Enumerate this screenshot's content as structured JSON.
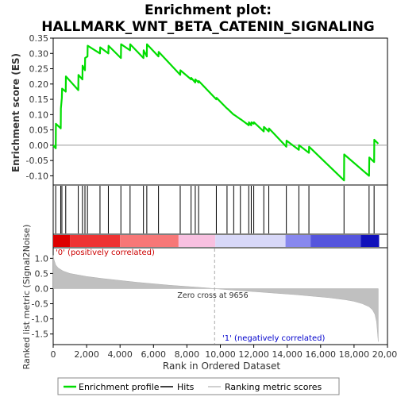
{
  "chart_data": {
    "type": "line",
    "title": "Enrichment plot:\nHALLMARK_WNT_BETA_CATENIN_SIGNALING",
    "es_panel": {
      "ylabel": "Enrichment score (ES)",
      "ylim": [
        -0.13,
        0.35
      ],
      "yticks": [
        -0.1,
        -0.05,
        0.0,
        0.05,
        0.1,
        0.15,
        0.2,
        0.25,
        0.3,
        0.35
      ],
      "ytick_labels": [
        "-0.10",
        "-0.05",
        "0.00",
        "0.05",
        "0.10",
        "0.15",
        "0.20",
        "0.25",
        "0.30",
        "0.35"
      ],
      "series": [
        {
          "name": "Enrichment profile",
          "color": "#00dd00",
          "x": [
            0,
            150,
            160,
            450,
            460,
            520,
            530,
            750,
            760,
            1500,
            1510,
            1750,
            1760,
            1900,
            1910,
            2050,
            2060,
            2800,
            2810,
            3300,
            3310,
            4050,
            4060,
            4600,
            4610,
            5400,
            5410,
            5600,
            5610,
            6300,
            6310,
            7600,
            7610,
            8250,
            8260,
            8500,
            8510,
            8700,
            8710,
            9760,
            9770,
            10400,
            10410,
            10800,
            10810,
            11200,
            11210,
            11700,
            11710,
            11850,
            11860,
            12000,
            12010,
            12600,
            12610,
            12900,
            12910,
            13950,
            13960,
            14700,
            14710,
            15300,
            15310,
            17400,
            17410,
            18900,
            18910,
            19200,
            19210,
            19450
          ],
          "y": [
            0.0,
            -0.01,
            0.07,
            0.055,
            0.12,
            0.155,
            0.185,
            0.175,
            0.225,
            0.18,
            0.23,
            0.215,
            0.26,
            0.245,
            0.285,
            0.29,
            0.325,
            0.3,
            0.32,
            0.3,
            0.325,
            0.285,
            0.33,
            0.31,
            0.33,
            0.285,
            0.31,
            0.29,
            0.33,
            0.29,
            0.305,
            0.23,
            0.245,
            0.215,
            0.22,
            0.205,
            0.215,
            0.205,
            0.21,
            0.15,
            0.155,
            0.12,
            0.12,
            0.1,
            0.1,
            0.085,
            0.085,
            0.065,
            0.075,
            0.065,
            0.075,
            0.07,
            0.075,
            0.045,
            0.06,
            0.045,
            0.055,
            -0.005,
            0.015,
            -0.015,
            0.0,
            -0.025,
            -0.005,
            -0.115,
            -0.03,
            -0.1,
            -0.04,
            -0.055,
            0.018,
            0.005
          ]
        }
      ]
    },
    "hits": {
      "legend_label": "Hits",
      "positions": [
        150,
        450,
        520,
        750,
        1500,
        1750,
        1900,
        2050,
        2800,
        3300,
        4050,
        4600,
        5400,
        5600,
        6300,
        7600,
        8250,
        8500,
        8700,
        9760,
        10400,
        10800,
        11200,
        11700,
        11850,
        12000,
        12600,
        12900,
        13950,
        14700,
        15300,
        17400,
        18900,
        19200
      ]
    },
    "ranked_metric_panel": {
      "ylabel": "Ranked list metric (Signal2Noise)",
      "ylim": [
        -1.85,
        1.35
      ],
      "yticks": [
        -1.5,
        -1.0,
        -0.5,
        0.0,
        0.5,
        1.0
      ],
      "ytick_labels": [
        "-1.5",
        "-1.0",
        "-0.5",
        "0.0",
        "0.5",
        "1.0"
      ],
      "legend_label": "Ranking metric scores",
      "curve": {
        "x": [
          0,
          50,
          150,
          300,
          600,
          1000,
          2000,
          3000,
          4000,
          5000,
          6000,
          7000,
          8000,
          9000,
          9656,
          10500,
          11500,
          12500,
          13500,
          14500,
          15500,
          16500,
          17500,
          18000,
          18500,
          18900,
          19100,
          19250,
          19350,
          19450
        ],
        "y": [
          1.1,
          0.95,
          0.78,
          0.68,
          0.58,
          0.5,
          0.4,
          0.33,
          0.27,
          0.21,
          0.16,
          0.11,
          0.07,
          0.03,
          0.0,
          -0.04,
          -0.08,
          -0.12,
          -0.16,
          -0.2,
          -0.25,
          -0.3,
          -0.37,
          -0.42,
          -0.5,
          -0.6,
          -0.7,
          -0.85,
          -1.1,
          -1.75
        ]
      },
      "zero_cross_label": "Zero cross at 9656",
      "zero_cross_x": 9656,
      "pos_label": "'0' (positively correlated)",
      "neg_label": "'1' (negatively correlated)"
    },
    "color_bar": {
      "segments": [
        {
          "from": 0,
          "to": 1000,
          "color": "#dd0000"
        },
        {
          "from": 1000,
          "to": 4000,
          "color": "#ee3333"
        },
        {
          "from": 4000,
          "to": 7500,
          "color": "#f77777"
        },
        {
          "from": 7500,
          "to": 9700,
          "color": "#f8c0e0"
        },
        {
          "from": 9700,
          "to": 13900,
          "color": "#d8d8f8"
        },
        {
          "from": 13900,
          "to": 15400,
          "color": "#8888ee"
        },
        {
          "from": 15400,
          "to": 18400,
          "color": "#5555dd"
        },
        {
          "from": 18400,
          "to": 19500,
          "color": "#1111bb"
        }
      ]
    },
    "xaxis": {
      "label": "Rank in Ordered Dataset",
      "xlim": [
        0,
        20000
      ],
      "ticks": [
        0,
        2000,
        4000,
        6000,
        8000,
        10000,
        12000,
        14000,
        16000,
        18000,
        20000
      ],
      "tick_labels": [
        "0",
        "2,000",
        "4,000",
        "6,000",
        "8,000",
        "10,000",
        "12,000",
        "14,000",
        "16,000",
        "18,000",
        "20,000"
      ]
    },
    "legend": {
      "items": [
        {
          "label": "Enrichment profile",
          "color": "#00dd00"
        },
        {
          "label": "Hits",
          "color": "#000000"
        },
        {
          "label": "Ranking metric scores",
          "color": "#c0c0c0"
        }
      ]
    }
  }
}
